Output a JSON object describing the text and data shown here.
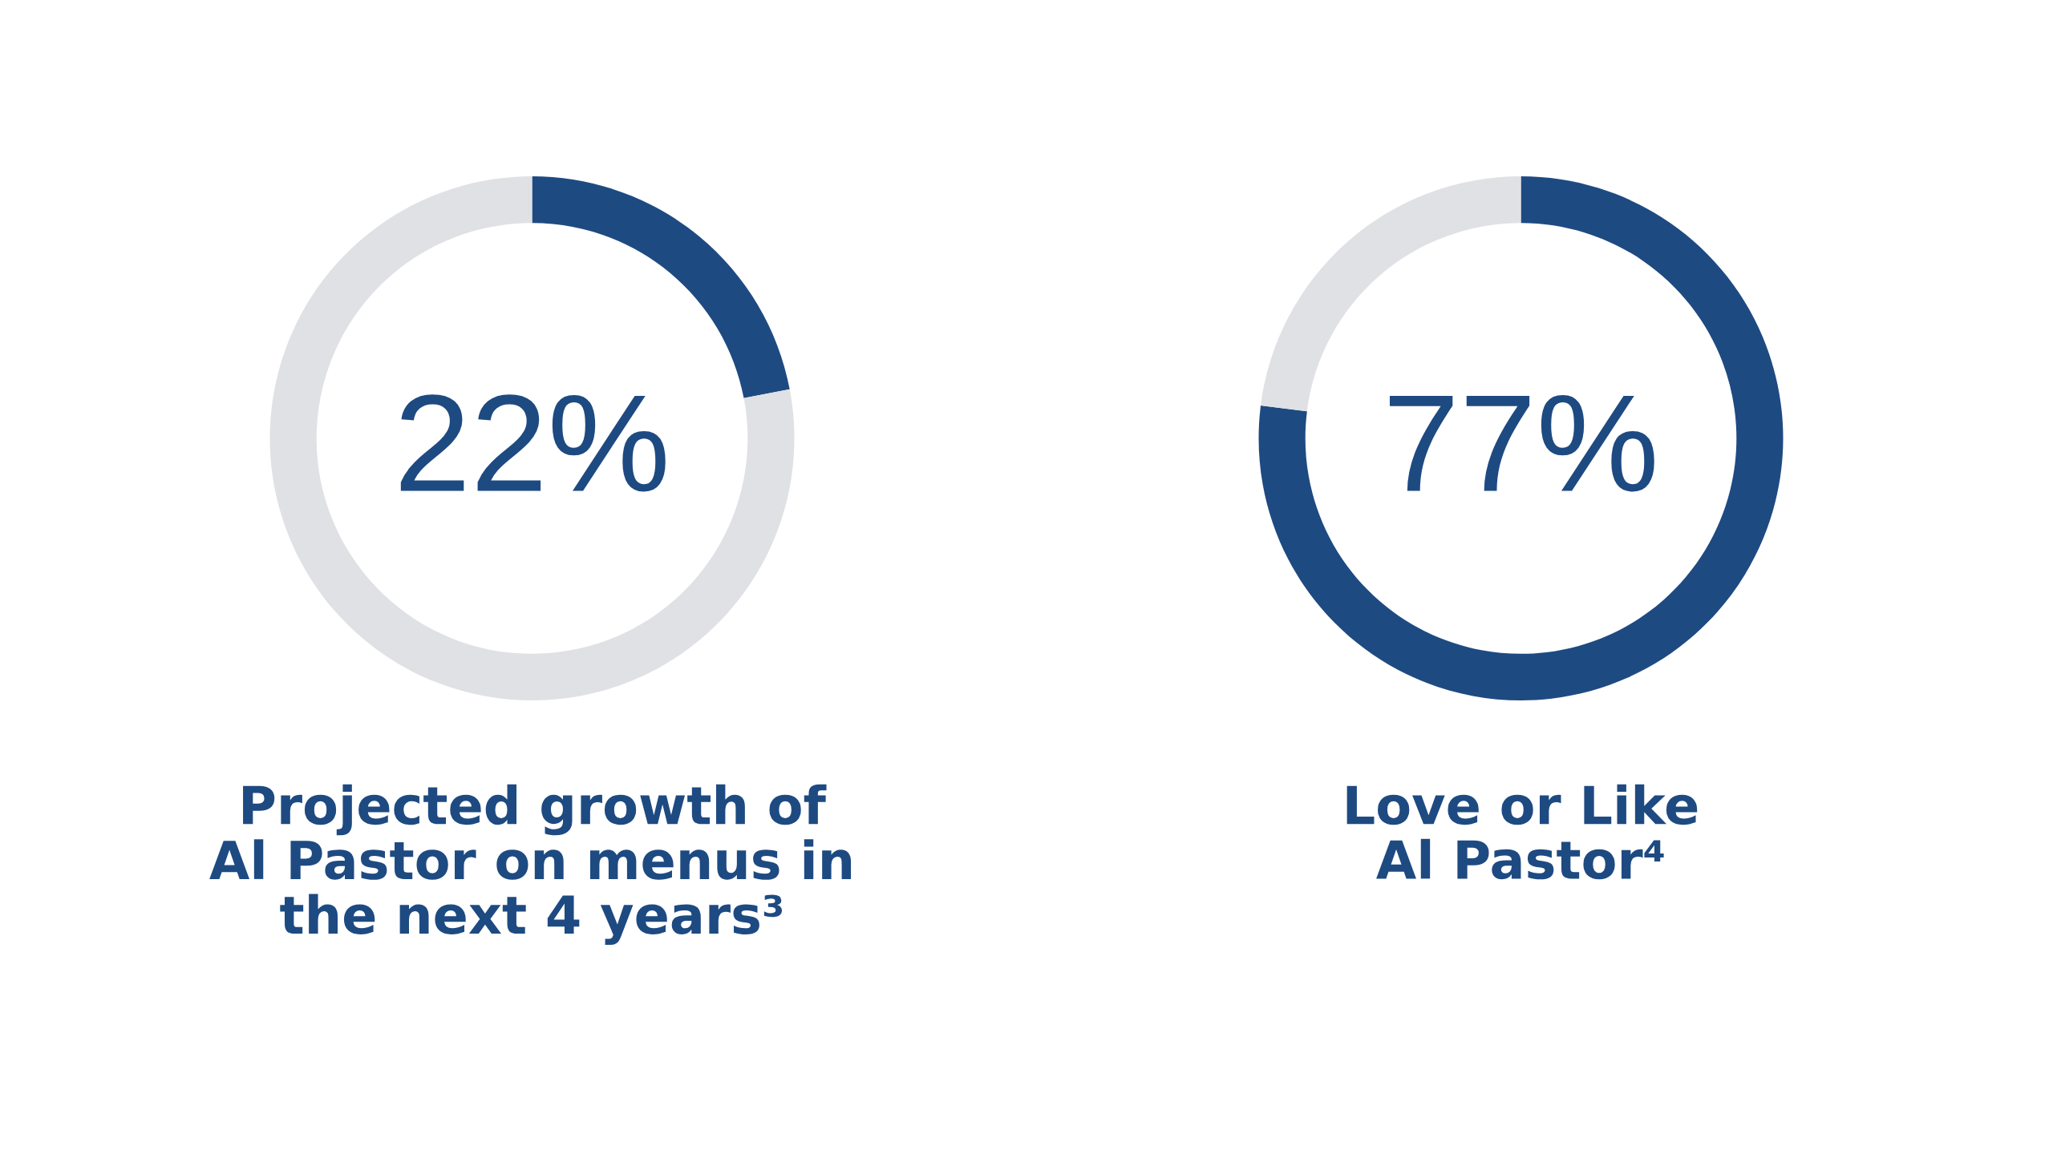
{
  "chart_data": [
    {
      "type": "donut",
      "title": "Projected growth of\nAl Pastor on menus in\nthe next 4 years³",
      "categories": [
        null,
        null
      ],
      "values": [
        22,
        78
      ],
      "colors": [
        "#1e4a82",
        "#e0e1e5"
      ],
      "annotations": [
        "22%"
      ]
    },
    {
      "type": "donut",
      "title": "Love or Like\nAl Pastor⁴",
      "categories": [
        null,
        null
      ],
      "values": [
        77,
        23
      ],
      "colors": [
        "#1e4a82",
        "#e0e1e5"
      ],
      "annotations": [
        "77%"
      ]
    }
  ]
}
